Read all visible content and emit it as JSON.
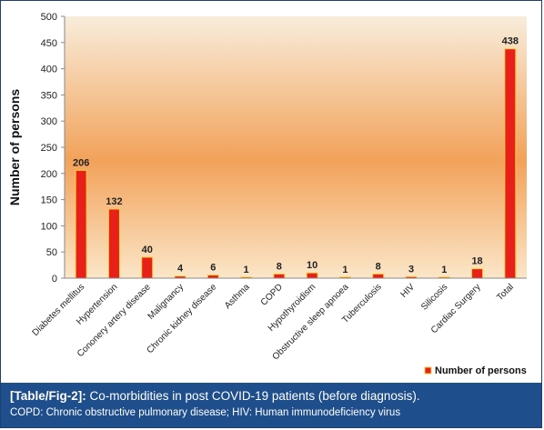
{
  "caption": {
    "tag": "[Table/Fig-2]:",
    "title": "Co-morbidities in post COVID-19 patients (before diagnosis).",
    "note": "COPD: Chronic obstructive pulmonary disease; HIV: Human immunodeficiency virus"
  },
  "colors": {
    "bar_fill": "#e8201a",
    "bar_stroke": "#f2d03a",
    "gradient_top": "#f8eddb",
    "gradient_mid": "#f2a25a",
    "gradient_bottom": "#fbe6c8",
    "caption_bg": "#1f4e8c"
  },
  "chart_data": {
    "type": "bar",
    "categories": [
      "Diabetes mellitus",
      "Hypertension",
      "Cononery artery disease",
      "Malignancy",
      "Chronic kidney disease",
      "Asthma",
      "COPD",
      "Hypothyroidism",
      "Obstructive sleep apnoea",
      "Tuberculosis",
      "HIV",
      "Silicosis",
      "Cardiac Surgery",
      "Total"
    ],
    "series": [
      {
        "name": "Number of persons",
        "values": [
          206,
          132,
          40,
          4,
          6,
          1,
          8,
          10,
          1,
          8,
          3,
          1,
          18,
          438
        ]
      }
    ],
    "data_labels": [
      "206",
      "132",
      "40",
      "4",
      "6",
      "1",
      "8",
      "10",
      "1",
      "8",
      "3",
      "1",
      "18",
      "438"
    ],
    "ylabel": "Number of persons",
    "xlabel": "",
    "ylim": [
      0,
      500
    ],
    "yticks": [
      "0",
      "50",
      "100",
      "150",
      "200",
      "250",
      "300",
      "350",
      "400",
      "450",
      "500"
    ],
    "grid": false,
    "legend": {
      "position": "bottom-right",
      "label": "Number of persons"
    }
  }
}
